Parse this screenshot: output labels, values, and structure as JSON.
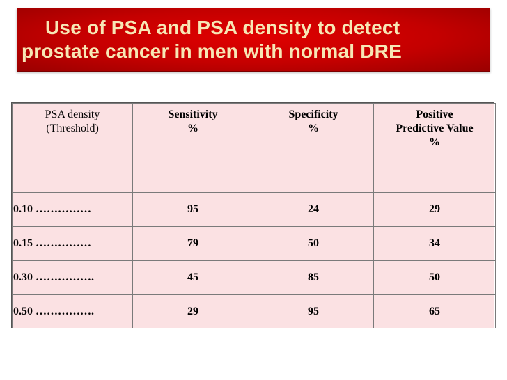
{
  "title": {
    "line1": "Use of PSA and PSA density to detect",
    "line2": "prostate cancer in men with normal DRE"
  },
  "table": {
    "headers": [
      [
        "PSA density",
        "(Threshold)"
      ],
      [
        "Sensitivity",
        "%"
      ],
      [
        "Specificity",
        "%"
      ],
      [
        "Positive",
        "Predictive Value",
        "%"
      ]
    ],
    "rows": [
      [
        "0.10 ……………",
        "95",
        "24",
        "29"
      ],
      [
        "0.15 ……………",
        "79",
        "50",
        "34"
      ],
      [
        "0.30 …………….",
        "45",
        "85",
        "50"
      ],
      [
        "0.50 …………….",
        "29",
        "95",
        "65"
      ]
    ]
  },
  "colors": {
    "title_background": "#c40000",
    "title_text": "#f7e7b5",
    "table_background": "#fbe1e3"
  }
}
